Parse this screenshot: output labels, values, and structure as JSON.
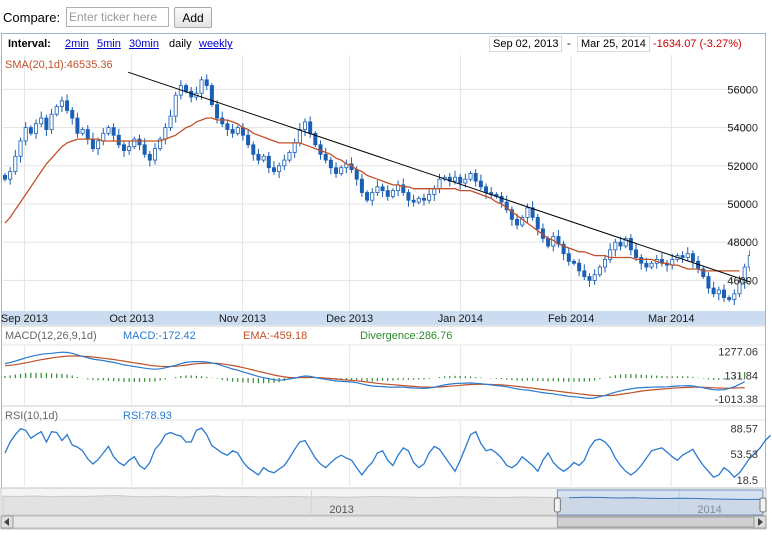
{
  "compare": {
    "label": "Compare:",
    "placeholder": "Enter ticker here",
    "add_label": "Add"
  },
  "toolbar": {
    "interval_label": "Interval:",
    "intervals": [
      "2min",
      "5min",
      "30min",
      "daily",
      "weekly"
    ],
    "active_interval": "daily",
    "start_date": "Sep 02, 2013",
    "separator": "-",
    "end_date": "Mar 25, 2014",
    "change": "-1634.07 (-3.27%)"
  },
  "colors": {
    "candle": "#1a5fb4",
    "sma": "#c0502a",
    "macd": "#2a7ad0",
    "ema": "#c0502a",
    "divergence": "#2e8b2e",
    "rsi": "#2a7ad0",
    "trendline": "#000000",
    "axis_band": "#cbdcf0",
    "change_negative": "#cc0000"
  },
  "chart_data": [
    {
      "type": "candlestick",
      "indicator_label": "SMA(20,1d):46535.36",
      "y_ticks": [
        56000,
        54000,
        52000,
        50000,
        48000,
        46000
      ],
      "y_tick_labels": [
        "56000",
        "54000",
        "52000",
        "50000",
        "48000",
        "46000"
      ],
      "ylim": [
        44400,
        57800
      ],
      "x_labels": [
        "Sep 2013",
        "Oct 2013",
        "Nov 2013",
        "Dec 2013",
        "Jan 2014",
        "Feb 2014",
        "Mar 2014"
      ],
      "x_label_dates": [
        "2013-09-01",
        "2013-10-01",
        "2013-11-01",
        "2013-12-01",
        "2014-01-01",
        "2014-02-01",
        "2014-03-01"
      ],
      "date_range": [
        "2013-08-26",
        "2014-03-25"
      ],
      "closes": [
        51300,
        51700,
        52500,
        53300,
        54000,
        53700,
        54200,
        54500,
        53900,
        54700,
        55100,
        55400,
        54900,
        54500,
        53700,
        53900,
        53400,
        52900,
        53300,
        53700,
        54000,
        53600,
        53100,
        52800,
        53000,
        53400,
        53100,
        52600,
        52300,
        52900,
        53400,
        54000,
        54600,
        55700,
        56200,
        55900,
        55600,
        55800,
        56500,
        56200,
        55200,
        54500,
        54200,
        53900,
        53700,
        54000,
        53600,
        53100,
        52600,
        52300,
        52500,
        51900,
        51700,
        52000,
        52300,
        52700,
        53200,
        53900,
        54300,
        53700,
        53100,
        52600,
        52300,
        51900,
        51600,
        51900,
        52100,
        51800,
        51300,
        50600,
        50200,
        50600,
        50900,
        50700,
        50400,
        50700,
        51000,
        50600,
        50200,
        50100,
        50300,
        50200,
        50500,
        50800,
        51300,
        51400,
        51200,
        51400,
        51100,
        51300,
        51600,
        51200,
        50900,
        50600,
        50500,
        50400,
        50100,
        49700,
        49200,
        48900,
        49300,
        49800,
        49300,
        48700,
        48200,
        47800,
        48300,
        47900,
        47400,
        47000,
        46900,
        46500,
        46200,
        46000,
        46300,
        46700,
        47100,
        47600,
        48000,
        47800,
        48200,
        47600,
        47200,
        46900,
        46700,
        46900,
        47100,
        46900,
        46800,
        47100,
        47300,
        47200,
        47400,
        47000,
        46600,
        46200,
        45600,
        45300,
        45500,
        45100,
        45000,
        45300,
        45900,
        46700,
        47300,
        47900
      ],
      "sma": [
        49000,
        49300,
        49700,
        50100,
        50500,
        50900,
        51300,
        51700,
        52100,
        52400,
        52700,
        53000,
        53200,
        53300,
        53400,
        53400,
        53400,
        53400,
        53400,
        53300,
        53300,
        53300,
        53300,
        53300,
        53300,
        53300,
        53300,
        53300,
        53300,
        53300,
        53300,
        53400,
        53500,
        53600,
        53800,
        54000,
        54100,
        54300,
        54400,
        54500,
        54500,
        54400,
        54400,
        54400,
        54300,
        54200,
        54000,
        53900,
        53700,
        53600,
        53500,
        53400,
        53300,
        53200,
        53200,
        53200,
        53200,
        53200,
        53100,
        53000,
        52900,
        52800,
        52700,
        52600,
        52400,
        52300,
        52100,
        52000,
        51800,
        51700,
        51500,
        51400,
        51300,
        51200,
        51100,
        51000,
        51000,
        50900,
        50900,
        50800,
        50800,
        50800,
        50800,
        50800,
        50800,
        50800,
        50800,
        50800,
        50700,
        50700,
        50700,
        50600,
        50500,
        50400,
        50300,
        50100,
        50000,
        49800,
        49600,
        49400,
        49200,
        49000,
        48800,
        48600,
        48400,
        48200,
        48100,
        47900,
        47800,
        47700,
        47600,
        47500,
        47500,
        47400,
        47300,
        47300,
        47300,
        47200,
        47200,
        47200,
        47200,
        47200,
        47100,
        47100,
        47100,
        47100,
        47000,
        46900,
        46900,
        46800,
        46800,
        46700,
        46600,
        46600,
        46600,
        46500,
        46500,
        46500,
        46500,
        46500,
        46500,
        46500,
        46500
      ],
      "trendline": [
        {
          "x": "2013-09-30",
          "y": 56900
        },
        {
          "x": "2014-03-25",
          "y": 45800
        }
      ]
    },
    {
      "type": "line",
      "indicator_label": "MACD(12,26,9,1d)",
      "series": [
        {
          "name": "MACD:-172.42",
          "values": [
            700,
            750,
            820,
            900,
            980,
            1050,
            1100,
            1150,
            1180,
            1200,
            1230,
            1250,
            1240,
            1200,
            1120,
            1050,
            980,
            920,
            880,
            850,
            800,
            760,
            700,
            640,
            600,
            560,
            520,
            480,
            450,
            430,
            450,
            500,
            560,
            620,
            700,
            760,
            790,
            800,
            800,
            780,
            740,
            680,
            600,
            520,
            440,
            380,
            300,
            230,
            150,
            80,
            20,
            -30,
            -80,
            -100,
            -80,
            -40,
            0,
            60,
            100,
            80,
            30,
            -20,
            -60,
            -100,
            -140,
            -160,
            -170,
            -190,
            -220,
            -280,
            -340,
            -380,
            -400,
            -410,
            -430,
            -440,
            -430,
            -440,
            -460,
            -480,
            -490,
            -500,
            -480,
            -440,
            -380,
            -330,
            -290,
            -260,
            -250,
            -240,
            -230,
            -250,
            -270,
            -300,
            -330,
            -360,
            -380,
            -420,
            -470,
            -520,
            -560,
            -580,
            -620,
            -660,
            -700,
            -740,
            -760,
            -800,
            -840,
            -880,
            -900,
            -930,
            -960,
            -980,
            -960,
            -900,
            -840,
            -760,
            -680,
            -620,
            -560,
            -520,
            -480,
            -460,
            -450,
            -440,
            -430,
            -430,
            -420,
            -400,
            -380,
            -370,
            -360,
            -380,
            -420,
            -470,
            -520,
            -560,
            -570,
            -560,
            -500,
            -420,
            -300,
            -172
          ]
        },
        {
          "name": "EMA:-459.18",
          "values": [
            600,
            620,
            650,
            690,
            740,
            790,
            840,
            890,
            930,
            970,
            1010,
            1040,
            1060,
            1070,
            1070,
            1060,
            1040,
            1020,
            990,
            960,
            930,
            900,
            860,
            820,
            780,
            740,
            700,
            660,
            620,
            590,
            570,
            560,
            560,
            570,
            600,
            630,
            660,
            690,
            710,
            720,
            720,
            710,
            690,
            650,
            610,
            560,
            510,
            450,
            390,
            330,
            270,
            210,
            150,
            100,
            60,
            30,
            20,
            20,
            30,
            30,
            30,
            20,
            0,
            -20,
            -40,
            -70,
            -90,
            -110,
            -130,
            -160,
            -190,
            -220,
            -250,
            -280,
            -300,
            -320,
            -340,
            -360,
            -380,
            -400,
            -420,
            -430,
            -440,
            -440,
            -430,
            -410,
            -390,
            -370,
            -350,
            -330,
            -310,
            -300,
            -300,
            -300,
            -310,
            -320,
            -330,
            -350,
            -370,
            -400,
            -430,
            -460,
            -490,
            -520,
            -550,
            -580,
            -610,
            -640,
            -670,
            -700,
            -730,
            -760,
            -790,
            -820,
            -840,
            -850,
            -850,
            -840,
            -820,
            -790,
            -750,
            -710,
            -670,
            -630,
            -600,
            -570,
            -550,
            -530,
            -510,
            -490,
            -470,
            -460,
            -450,
            -440,
            -440,
            -450,
            -460,
            -470,
            -480,
            -490,
            -490,
            -480,
            -470,
            -459
          ]
        }
      ],
      "divergence_label": "Divergence:286.76",
      "y_tick_labels": [
        "1277.06",
        "131.84",
        "-1013.38"
      ],
      "y_ticks": [
        1277.06,
        131.84,
        -1013.38
      ],
      "ylim": [
        -1300,
        1600
      ]
    },
    {
      "type": "line",
      "indicator_label": "RSI(10,1d)",
      "series": [
        {
          "name": "RSI:78.93",
          "values": [
            55,
            70,
            80,
            88,
            86,
            75,
            80,
            84,
            70,
            84,
            83,
            72,
            80,
            66,
            63,
            58,
            47,
            40,
            46,
            55,
            64,
            50,
            42,
            38,
            45,
            50,
            38,
            33,
            42,
            60,
            68,
            80,
            83,
            80,
            78,
            70,
            70,
            86,
            89,
            80,
            65,
            60,
            55,
            52,
            58,
            55,
            43,
            35,
            30,
            25,
            35,
            30,
            28,
            33,
            38,
            48,
            60,
            70,
            72,
            60,
            48,
            40,
            35,
            42,
            48,
            52,
            48,
            45,
            35,
            25,
            35,
            42,
            55,
            58,
            45,
            38,
            52,
            62,
            58,
            42,
            35,
            40,
            55,
            64,
            60,
            50,
            40,
            30,
            45,
            62,
            80,
            84,
            68,
            58,
            60,
            55,
            48,
            38,
            35,
            40,
            50,
            44,
            38,
            30,
            45,
            55,
            42,
            35,
            30,
            35,
            42,
            38,
            45,
            62,
            72,
            74,
            70,
            62,
            48,
            38,
            30,
            25,
            30,
            38,
            48,
            58,
            60,
            62,
            56,
            50,
            45,
            52,
            56,
            60,
            48,
            38,
            30,
            22,
            25,
            35,
            30,
            22,
            28,
            38,
            48,
            55,
            62,
            72,
            79
          ]
        }
      ],
      "y_tick_labels": [
        "88.57",
        "53.53",
        "18.5"
      ],
      "y_ticks": [
        88.57,
        53.53,
        18.5
      ],
      "ylim": [
        10,
        100
      ]
    },
    {
      "type": "area",
      "name": "navigator",
      "x_labels": [
        "2013",
        "2014"
      ],
      "x_label_dates": [
        "2013-01-01",
        "2014-01-01"
      ],
      "date_range": [
        "2012-03-01",
        "2014-03-25"
      ],
      "values": [
        0.75,
        0.74,
        0.76,
        0.73,
        0.75,
        0.74,
        0.76,
        0.78,
        0.74,
        0.73,
        0.75,
        0.72,
        0.74,
        0.76,
        0.73,
        0.74,
        0.72,
        0.73,
        0.74,
        0.72,
        0.73,
        0.71,
        0.72,
        0.74,
        0.73,
        0.72,
        0.7,
        0.71,
        0.73,
        0.72,
        0.71,
        0.7,
        0.72,
        0.71,
        0.7,
        0.69,
        0.71,
        0.7,
        0.68,
        0.69,
        0.67,
        0.66,
        0.67,
        0.66,
        0.64,
        0.63,
        0.62,
        0.63
      ],
      "selection": [
        "2013-09-02",
        "2014-03-25"
      ]
    }
  ]
}
